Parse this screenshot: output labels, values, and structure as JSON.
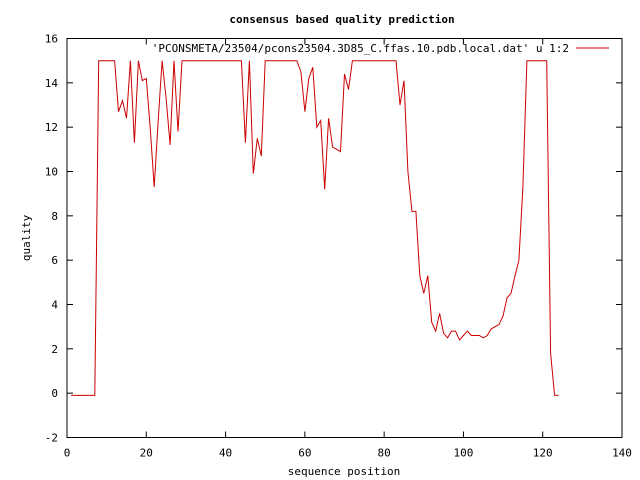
{
  "chart_data": {
    "type": "line",
    "title": "consensus based quality prediction",
    "xlabel": "sequence position",
    "ylabel": "quality",
    "xlim": [
      0,
      140
    ],
    "ylim": [
      -2,
      16
    ],
    "xticks": [
      0,
      20,
      40,
      60,
      80,
      100,
      120,
      140
    ],
    "yticks": [
      -2,
      0,
      2,
      4,
      6,
      8,
      10,
      12,
      14,
      16
    ],
    "grid": false,
    "legend_position": "top-right",
    "series": [
      {
        "name": "'PCONSMETA/23504/pcons23504.3D85_C.ffas.10.pdb.local.dat' u 1:2",
        "color": "#cc0000",
        "x": [
          1,
          2,
          3,
          4,
          5,
          6,
          7,
          8,
          9,
          10,
          11,
          12,
          13,
          14,
          15,
          16,
          17,
          18,
          19,
          20,
          21,
          22,
          23,
          24,
          25,
          26,
          27,
          28,
          29,
          30,
          31,
          32,
          33,
          34,
          35,
          36,
          37,
          38,
          39,
          40,
          41,
          42,
          43,
          44,
          45,
          46,
          47,
          48,
          49,
          50,
          51,
          52,
          53,
          54,
          55,
          56,
          57,
          58,
          59,
          60,
          61,
          62,
          63,
          64,
          65,
          66,
          67,
          68,
          69,
          70,
          71,
          72,
          73,
          74,
          75,
          76,
          77,
          78,
          79,
          80,
          81,
          82,
          83,
          84,
          85,
          86,
          87,
          88,
          89,
          90,
          91,
          92,
          93,
          94,
          95,
          96,
          97,
          98,
          99,
          100,
          101,
          102,
          103,
          104,
          105,
          106,
          107,
          108,
          109,
          110,
          111,
          112,
          113,
          114,
          115,
          116,
          117,
          118,
          119,
          120,
          121,
          122,
          123,
          124
        ],
        "values": [
          -0.1,
          -0.1,
          -0.1,
          -0.1,
          -0.1,
          -0.1,
          -0.1,
          15,
          15,
          15,
          15,
          15,
          12.7,
          13.2,
          12.4,
          15,
          11.3,
          15,
          14.1,
          14.2,
          11.9,
          9.3,
          12.3,
          15,
          13.3,
          11.2,
          15,
          11.8,
          15,
          15,
          15,
          15,
          15,
          15,
          15,
          15,
          15,
          15,
          15,
          15,
          15,
          15,
          15,
          15,
          11.3,
          15,
          9.9,
          11.5,
          10.7,
          15,
          15,
          15,
          15,
          15,
          15,
          15,
          15,
          15,
          14.5,
          12.7,
          14.2,
          14.7,
          12,
          12.3,
          9.2,
          12.4,
          11.1,
          11,
          10.9,
          14.4,
          13.7,
          15,
          15,
          15,
          15,
          15,
          15,
          15,
          15,
          15,
          15,
          15,
          15,
          13,
          14.1,
          10,
          8.2,
          8.2,
          5.3,
          4.5,
          5.3,
          3.2,
          2.8,
          3.6,
          2.7,
          2.5,
          2.8,
          2.8,
          2.4,
          2.6,
          2.8,
          2.6,
          2.6,
          2.6,
          2.5,
          2.6,
          2.9,
          3,
          3.1,
          3.5,
          4.3,
          4.5,
          5.3,
          6,
          9.3,
          15,
          15,
          15,
          15,
          15,
          15,
          1.8,
          -0.1,
          -0.1
        ]
      }
    ]
  }
}
